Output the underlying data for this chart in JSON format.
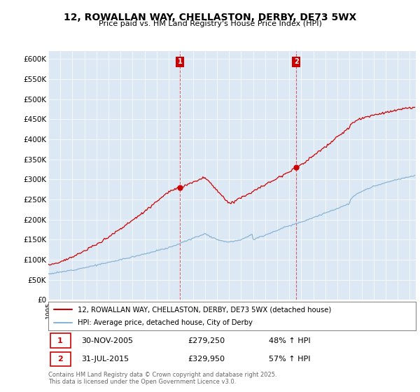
{
  "title": "12, ROWALLAN WAY, CHELLASTON, DERBY, DE73 5WX",
  "subtitle": "Price paid vs. HM Land Registry's House Price Index (HPI)",
  "ylim": [
    0,
    620000
  ],
  "yticks": [
    0,
    50000,
    100000,
    150000,
    200000,
    250000,
    300000,
    350000,
    400000,
    450000,
    500000,
    550000,
    600000
  ],
  "bg_color": "#dce9f5",
  "fig_bg": "#ffffff",
  "line1_color": "#cc0000",
  "line2_color": "#8ab4d4",
  "vline_color": "#cc0000",
  "legend_line1": "12, ROWALLAN WAY, CHELLASTON, DERBY, DE73 5WX (detached house)",
  "legend_line2": "HPI: Average price, detached house, City of Derby",
  "table_row1": [
    "1",
    "30-NOV-2005",
    "£279,250",
    "48% ↑ HPI"
  ],
  "table_row2": [
    "2",
    "31-JUL-2015",
    "£329,950",
    "57% ↑ HPI"
  ],
  "footer": "Contains HM Land Registry data © Crown copyright and database right 2025.\nThis data is licensed under the Open Government Licence v3.0.",
  "xstart_year": 1995,
  "xend_year": 2025,
  "sale1_year": 2005.917,
  "sale1_price": 279250,
  "sale2_year": 2015.583,
  "sale2_price": 329950
}
